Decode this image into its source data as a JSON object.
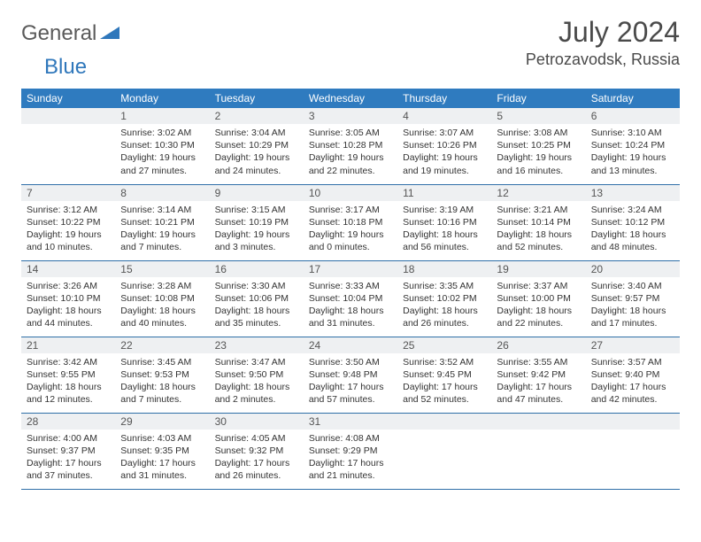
{
  "brand": {
    "part1": "General",
    "part2": "Blue"
  },
  "title": "July 2024",
  "location": "Petrozavodsk, Russia",
  "colors": {
    "header_bg": "#2f7bbf",
    "header_fg": "#ffffff",
    "daynum_bg": "#eef0f2",
    "rule": "#2f6fa8",
    "brand_blue": "#2f77bb",
    "brand_gray": "#5a5a5a"
  },
  "weekdays": [
    "Sunday",
    "Monday",
    "Tuesday",
    "Wednesday",
    "Thursday",
    "Friday",
    "Saturday"
  ],
  "weeks": [
    [
      {
        "n": "",
        "lines": []
      },
      {
        "n": "1",
        "lines": [
          "Sunrise: 3:02 AM",
          "Sunset: 10:30 PM",
          "Daylight: 19 hours",
          "and 27 minutes."
        ]
      },
      {
        "n": "2",
        "lines": [
          "Sunrise: 3:04 AM",
          "Sunset: 10:29 PM",
          "Daylight: 19 hours",
          "and 24 minutes."
        ]
      },
      {
        "n": "3",
        "lines": [
          "Sunrise: 3:05 AM",
          "Sunset: 10:28 PM",
          "Daylight: 19 hours",
          "and 22 minutes."
        ]
      },
      {
        "n": "4",
        "lines": [
          "Sunrise: 3:07 AM",
          "Sunset: 10:26 PM",
          "Daylight: 19 hours",
          "and 19 minutes."
        ]
      },
      {
        "n": "5",
        "lines": [
          "Sunrise: 3:08 AM",
          "Sunset: 10:25 PM",
          "Daylight: 19 hours",
          "and 16 minutes."
        ]
      },
      {
        "n": "6",
        "lines": [
          "Sunrise: 3:10 AM",
          "Sunset: 10:24 PM",
          "Daylight: 19 hours",
          "and 13 minutes."
        ]
      }
    ],
    [
      {
        "n": "7",
        "lines": [
          "Sunrise: 3:12 AM",
          "Sunset: 10:22 PM",
          "Daylight: 19 hours",
          "and 10 minutes."
        ]
      },
      {
        "n": "8",
        "lines": [
          "Sunrise: 3:14 AM",
          "Sunset: 10:21 PM",
          "Daylight: 19 hours",
          "and 7 minutes."
        ]
      },
      {
        "n": "9",
        "lines": [
          "Sunrise: 3:15 AM",
          "Sunset: 10:19 PM",
          "Daylight: 19 hours",
          "and 3 minutes."
        ]
      },
      {
        "n": "10",
        "lines": [
          "Sunrise: 3:17 AM",
          "Sunset: 10:18 PM",
          "Daylight: 19 hours",
          "and 0 minutes."
        ]
      },
      {
        "n": "11",
        "lines": [
          "Sunrise: 3:19 AM",
          "Sunset: 10:16 PM",
          "Daylight: 18 hours",
          "and 56 minutes."
        ]
      },
      {
        "n": "12",
        "lines": [
          "Sunrise: 3:21 AM",
          "Sunset: 10:14 PM",
          "Daylight: 18 hours",
          "and 52 minutes."
        ]
      },
      {
        "n": "13",
        "lines": [
          "Sunrise: 3:24 AM",
          "Sunset: 10:12 PM",
          "Daylight: 18 hours",
          "and 48 minutes."
        ]
      }
    ],
    [
      {
        "n": "14",
        "lines": [
          "Sunrise: 3:26 AM",
          "Sunset: 10:10 PM",
          "Daylight: 18 hours",
          "and 44 minutes."
        ]
      },
      {
        "n": "15",
        "lines": [
          "Sunrise: 3:28 AM",
          "Sunset: 10:08 PM",
          "Daylight: 18 hours",
          "and 40 minutes."
        ]
      },
      {
        "n": "16",
        "lines": [
          "Sunrise: 3:30 AM",
          "Sunset: 10:06 PM",
          "Daylight: 18 hours",
          "and 35 minutes."
        ]
      },
      {
        "n": "17",
        "lines": [
          "Sunrise: 3:33 AM",
          "Sunset: 10:04 PM",
          "Daylight: 18 hours",
          "and 31 minutes."
        ]
      },
      {
        "n": "18",
        "lines": [
          "Sunrise: 3:35 AM",
          "Sunset: 10:02 PM",
          "Daylight: 18 hours",
          "and 26 minutes."
        ]
      },
      {
        "n": "19",
        "lines": [
          "Sunrise: 3:37 AM",
          "Sunset: 10:00 PM",
          "Daylight: 18 hours",
          "and 22 minutes."
        ]
      },
      {
        "n": "20",
        "lines": [
          "Sunrise: 3:40 AM",
          "Sunset: 9:57 PM",
          "Daylight: 18 hours",
          "and 17 minutes."
        ]
      }
    ],
    [
      {
        "n": "21",
        "lines": [
          "Sunrise: 3:42 AM",
          "Sunset: 9:55 PM",
          "Daylight: 18 hours",
          "and 12 minutes."
        ]
      },
      {
        "n": "22",
        "lines": [
          "Sunrise: 3:45 AM",
          "Sunset: 9:53 PM",
          "Daylight: 18 hours",
          "and 7 minutes."
        ]
      },
      {
        "n": "23",
        "lines": [
          "Sunrise: 3:47 AM",
          "Sunset: 9:50 PM",
          "Daylight: 18 hours",
          "and 2 minutes."
        ]
      },
      {
        "n": "24",
        "lines": [
          "Sunrise: 3:50 AM",
          "Sunset: 9:48 PM",
          "Daylight: 17 hours",
          "and 57 minutes."
        ]
      },
      {
        "n": "25",
        "lines": [
          "Sunrise: 3:52 AM",
          "Sunset: 9:45 PM",
          "Daylight: 17 hours",
          "and 52 minutes."
        ]
      },
      {
        "n": "26",
        "lines": [
          "Sunrise: 3:55 AM",
          "Sunset: 9:42 PM",
          "Daylight: 17 hours",
          "and 47 minutes."
        ]
      },
      {
        "n": "27",
        "lines": [
          "Sunrise: 3:57 AM",
          "Sunset: 9:40 PM",
          "Daylight: 17 hours",
          "and 42 minutes."
        ]
      }
    ],
    [
      {
        "n": "28",
        "lines": [
          "Sunrise: 4:00 AM",
          "Sunset: 9:37 PM",
          "Daylight: 17 hours",
          "and 37 minutes."
        ]
      },
      {
        "n": "29",
        "lines": [
          "Sunrise: 4:03 AM",
          "Sunset: 9:35 PM",
          "Daylight: 17 hours",
          "and 31 minutes."
        ]
      },
      {
        "n": "30",
        "lines": [
          "Sunrise: 4:05 AM",
          "Sunset: 9:32 PM",
          "Daylight: 17 hours",
          "and 26 minutes."
        ]
      },
      {
        "n": "31",
        "lines": [
          "Sunrise: 4:08 AM",
          "Sunset: 9:29 PM",
          "Daylight: 17 hours",
          "and 21 minutes."
        ]
      },
      {
        "n": "",
        "lines": []
      },
      {
        "n": "",
        "lines": []
      },
      {
        "n": "",
        "lines": []
      }
    ]
  ]
}
